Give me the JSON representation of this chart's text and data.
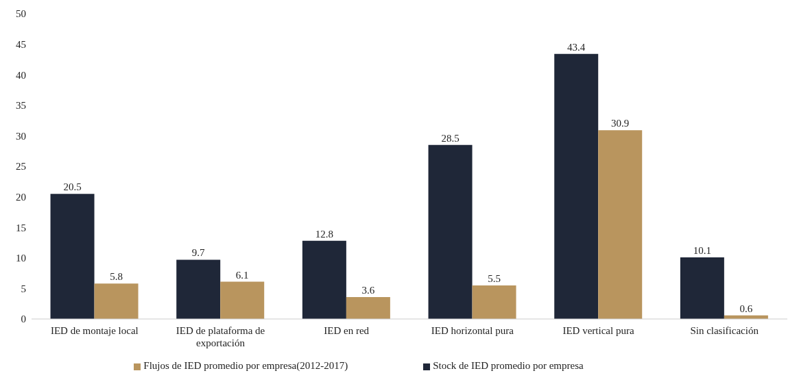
{
  "chart_data": {
    "type": "bar",
    "categories": [
      "IED de montaje local",
      "IED de plataforma de exportación",
      "IED en red",
      "IED horizontal pura",
      "IED vertical pura",
      "Sin clasificación"
    ],
    "series": [
      {
        "name": "Stock de IED promedio por empresa",
        "color": "#1f2738",
        "values": [
          20.5,
          9.7,
          12.8,
          28.5,
          43.4,
          10.1
        ]
      },
      {
        "name": "Flujos de IED promedio por empresa(2012-2017)",
        "color": "#b9955e",
        "values": [
          5.8,
          6.1,
          3.6,
          5.5,
          30.9,
          0.6
        ]
      }
    ],
    "ylim": [
      0,
      50
    ],
    "yticks": [
      0,
      5,
      10,
      15,
      20,
      25,
      30,
      35,
      40,
      45,
      50
    ],
    "grid": false,
    "legend": "bottom",
    "data_labels": true
  }
}
